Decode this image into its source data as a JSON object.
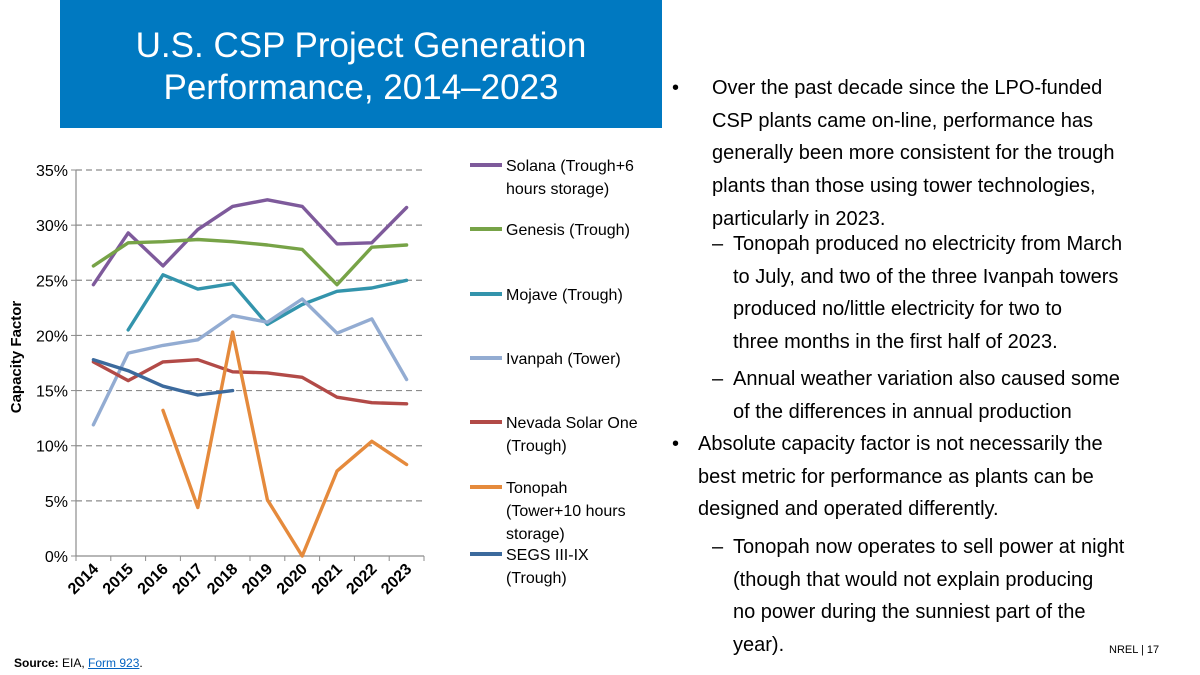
{
  "title": {
    "line1": "U.S. CSP Project Generation",
    "line2": "Performance, 2014–2023"
  },
  "colors": {
    "title_bg": "#0079C1",
    "link": "#0563C1"
  },
  "chart_data": {
    "type": "line",
    "ylabel": "Capacity Factor",
    "xlabel": "",
    "categories": [
      "2014",
      "2015",
      "2016",
      "2017",
      "2018",
      "2019",
      "2020",
      "2021",
      "2022",
      "2023"
    ],
    "y_ticks": [
      "0%",
      "5%",
      "10%",
      "15%",
      "20%",
      "25%",
      "30%",
      "35%"
    ],
    "ylim": [
      0,
      35
    ],
    "grid": "horizontal dashed",
    "legend_position": "right",
    "series": [
      {
        "name": "Solana (Trough+6 hours storage)",
        "color": "#7E5A9B",
        "values": [
          24.6,
          29.3,
          26.3,
          29.6,
          31.7,
          32.3,
          31.7,
          28.3,
          28.4,
          31.6
        ]
      },
      {
        "name": "Genesis (Trough)",
        "color": "#77A347",
        "values": [
          26.3,
          28.4,
          28.5,
          28.7,
          28.5,
          28.2,
          27.8,
          24.6,
          28.0,
          28.2
        ]
      },
      {
        "name": "Mojave (Trough)",
        "color": "#3394AC",
        "values": [
          null,
          20.5,
          25.5,
          24.2,
          24.7,
          21.0,
          22.8,
          24.0,
          24.3,
          25.0
        ]
      },
      {
        "name": "Ivanpah (Tower)",
        "color": "#93ACD2",
        "values": [
          11.9,
          18.4,
          19.1,
          19.6,
          21.8,
          21.2,
          23.3,
          20.2,
          21.5,
          16.0
        ]
      },
      {
        "name": "Nevada Solar One (Trough)",
        "color": "#B24A47",
        "values": [
          17.6,
          15.9,
          17.6,
          17.8,
          16.7,
          16.6,
          16.2,
          14.4,
          13.9,
          13.8
        ]
      },
      {
        "name": "Tonopah (Tower+10 hours storage)",
        "color": "#E58A3C",
        "values": [
          null,
          null,
          13.2,
          4.4,
          20.3,
          5.1,
          0.0,
          7.7,
          10.4,
          8.3
        ]
      },
      {
        "name": "SEGS III-IX (Trough)",
        "color": "#3C6A9D",
        "values": [
          17.8,
          16.8,
          15.4,
          14.6,
          15.0,
          null,
          null,
          null,
          null,
          null
        ]
      }
    ]
  },
  "legend": [
    {
      "line1": "Solana (Trough+6",
      "line2": "hours storage)",
      "line3": ""
    },
    {
      "line1": "Genesis (Trough)",
      "line2": "",
      "line3": ""
    },
    {
      "line1": "Mojave (Trough)",
      "line2": "",
      "line3": ""
    },
    {
      "line1": "Ivanpah (Tower)",
      "line2": "",
      "line3": ""
    },
    {
      "line1": "Nevada Solar One",
      "line2": "(Trough)",
      "line3": ""
    },
    {
      "line1": "Tonopah",
      "line2": "(Tower+10 hours",
      "line3": "storage)"
    },
    {
      "line1": "SEGS III-IX",
      "line2": "(Trough)",
      "line3": ""
    }
  ],
  "bullets": [
    {
      "marker": "•",
      "lines": [
        "Over the past decade since the LPO-funded",
        "CSP plants came on-line, performance has",
        "generally been more consistent for the trough",
        "plants than those using tower technologies,",
        "particularly in 2023."
      ]
    },
    {
      "marker": "–",
      "lines": [
        "Tonopah produced no electricity from March",
        "to July, and two of the three Ivanpah towers",
        "produced no/little electricity for two to",
        "three months in the first half of 2023."
      ]
    },
    {
      "marker": "–",
      "lines": [
        "Annual weather variation also caused some",
        "of the differences in annual production"
      ]
    },
    {
      "marker": "•",
      "lines": [
        "Absolute capacity factor is not necessarily the",
        "best metric for performance as plants can be",
        "designed and operated differently."
      ]
    },
    {
      "marker": "–",
      "lines": [
        "Tonopah now operates to sell power at night",
        "(though that would not explain producing",
        "no power during the sunniest part of the",
        "year)."
      ]
    }
  ],
  "source": {
    "label": "Source:",
    "text": " EIA, ",
    "link": "Form 923",
    "end": "."
  },
  "footer": {
    "org": "NREL",
    "sep": " | ",
    "page": "17"
  }
}
